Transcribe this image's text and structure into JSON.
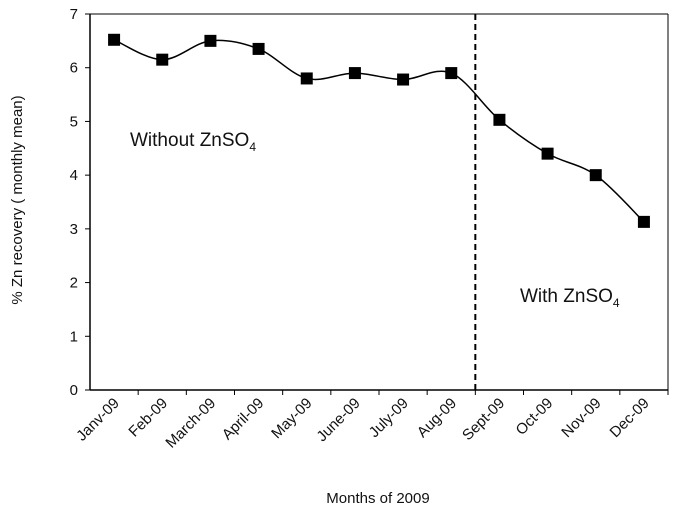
{
  "chart_data": {
    "type": "line",
    "categories": [
      "Janv-09",
      "Feb-09",
      "March-09",
      "April-09",
      "May-09",
      "June-09",
      "July-09",
      "Aug-09",
      "Sept-09",
      "Oct-09",
      "Nov-09",
      "Dec-09"
    ],
    "series": [
      {
        "values": [
          6.52,
          6.15,
          6.5,
          6.35,
          5.8,
          5.9,
          5.78,
          5.9,
          5.03,
          4.4,
          4.0,
          3.13
        ]
      }
    ],
    "xlabel": "Months of 2009",
    "ylabel": "% Zn recovery ( monthly mean)",
    "ylim": [
      0,
      7
    ],
    "yticks": [
      0,
      1,
      2,
      3,
      4,
      5,
      6,
      7
    ],
    "grid": false,
    "divider_after_category": "Aug-09",
    "annotations": {
      "before": {
        "text": "Without ZnSO",
        "sub": "4"
      },
      "after": {
        "text": "With ZnSO",
        "sub": "4"
      }
    },
    "colors": {
      "line": "#000000",
      "marker": "#000000",
      "divider": "#000000"
    }
  }
}
